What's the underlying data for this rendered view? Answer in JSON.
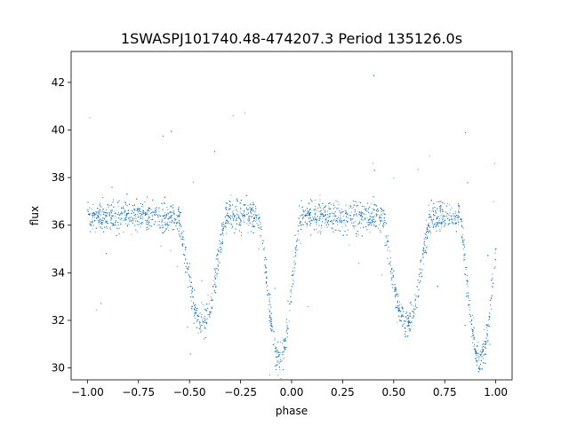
{
  "chart_data": {
    "type": "scatter",
    "title": "1SWASPJ101740.48-474207.3 Period 135126.0s",
    "xlabel": "phase",
    "ylabel": "flux",
    "xlim": [
      -1.08,
      1.08
    ],
    "ylim": [
      29.5,
      43.3
    ],
    "xticks": [
      -1.0,
      -0.75,
      -0.5,
      -0.25,
      0.0,
      0.25,
      0.5,
      0.75,
      1.0
    ],
    "xtick_labels": [
      "−1.00",
      "−0.75",
      "−0.50",
      "−0.25",
      "0.00",
      "0.25",
      "0.50",
      "0.75",
      "1.00"
    ],
    "yticks": [
      30,
      32,
      34,
      36,
      38,
      40,
      42
    ],
    "ytick_labels": [
      "30",
      "32",
      "34",
      "36",
      "38",
      "40",
      "42"
    ],
    "grid": false,
    "legend": "none",
    "point_color": "#1f77b4",
    "series": [
      {
        "baseline_flux": 36.4,
        "baseline_scatter": 0.45,
        "phase_range": [
          -1.0,
          1.0
        ],
        "eclipses": [
          {
            "center_phase": -0.44,
            "min_flux": 31.9,
            "half_width_phase": 0.12
          },
          {
            "center_phase": 0.56,
            "min_flux": 31.9,
            "half_width_phase": 0.12
          },
          {
            "center_phase": -0.06,
            "min_flux": 30.4,
            "half_width_phase": 0.1
          },
          {
            "center_phase": 0.92,
            "min_flux": 30.4,
            "half_width_phase": 0.1
          }
        ]
      }
    ]
  }
}
